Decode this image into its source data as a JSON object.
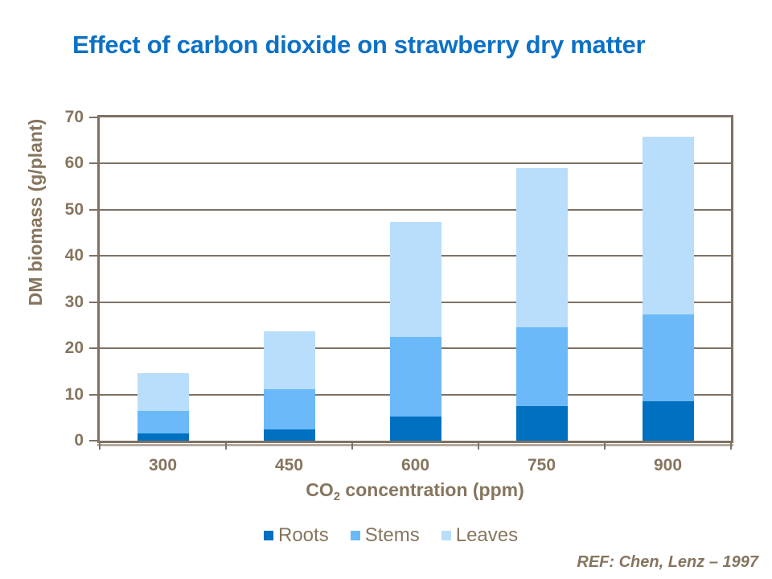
{
  "slide": {
    "reference": "REF: Chen, Lenz – 1997"
  },
  "colors": {
    "title_text": "#0d71c5",
    "axis_text": "#86755e",
    "axis_line": "#7e7164",
    "axis_shadow": "#b3aa9e",
    "background": "#ffffff"
  },
  "chart_data": {
    "type": "bar",
    "stacked": true,
    "title": "Effect of carbon dioxide on strawberry dry matter",
    "categories": [
      "300",
      "450",
      "600",
      "750",
      "900"
    ],
    "series": [
      {
        "name": "Roots",
        "color": "#0070c0",
        "values": [
          1.5,
          2.4,
          5.3,
          7.5,
          8.5
        ]
      },
      {
        "name": "Stems",
        "color": "#6bb9f8",
        "values": [
          4.9,
          8.7,
          17.1,
          17.1,
          18.9
        ]
      },
      {
        "name": "Leaves",
        "color": "#b9defb",
        "values": [
          8.3,
          12.6,
          25.0,
          34.4,
          38.4
        ]
      }
    ],
    "totals": [
      14.7,
      23.7,
      47.4,
      59.0,
      65.8
    ],
    "xlabel": "CO2 concentration (ppm)",
    "xlabel_parts": {
      "pre": "CO",
      "sub": "2",
      "post": " concentration (ppm)"
    },
    "ylabel": "DM biomass (g/plant)",
    "ylim": [
      0,
      70
    ],
    "yticks": [
      0,
      10,
      20,
      30,
      40,
      50,
      60,
      70
    ],
    "grid": "horizontal",
    "legend_position": "bottom"
  }
}
